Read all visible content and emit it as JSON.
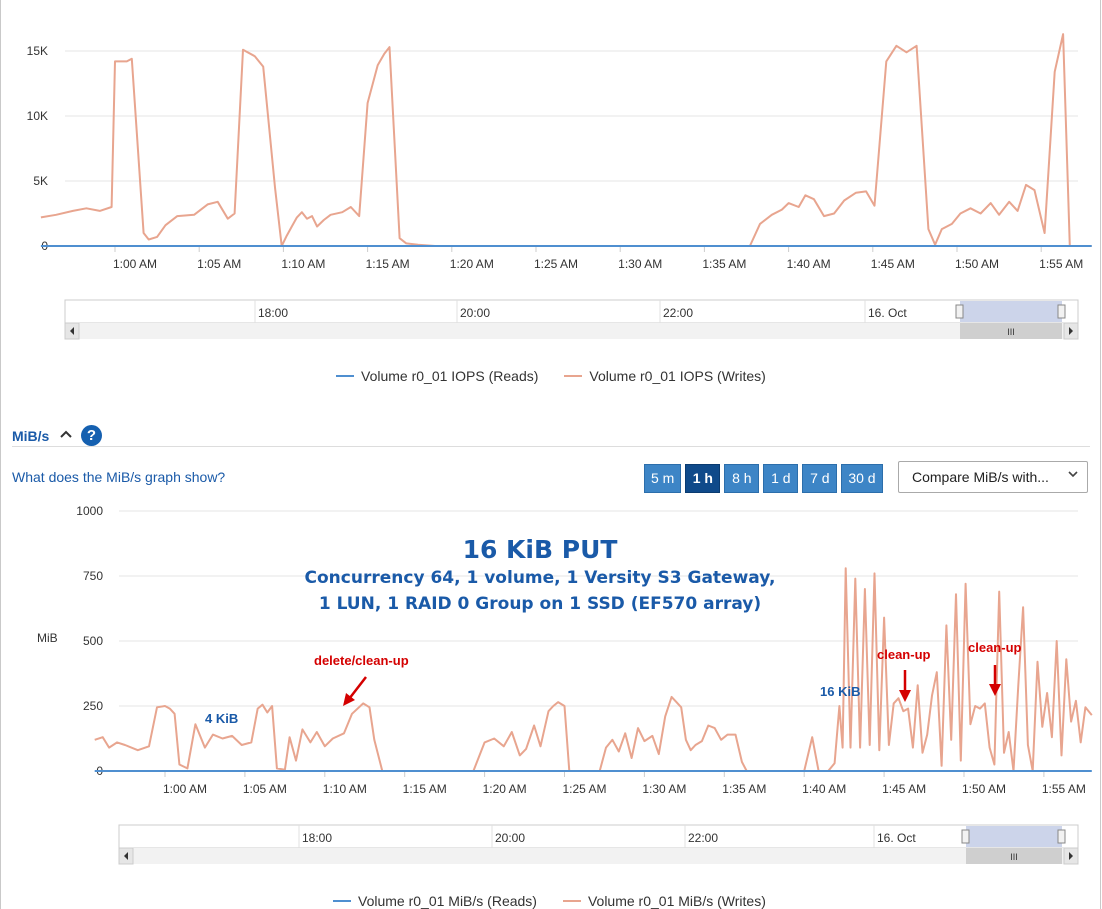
{
  "chart_data": [
    {
      "type": "line",
      "title": "",
      "ylabel": "",
      "y_ticks": [
        "0",
        "5K",
        "10K",
        "15K"
      ],
      "ylim": [
        0,
        17500
      ],
      "x_ticks": [
        "1:00 AM",
        "1:05 AM",
        "1:10 AM",
        "1:15 AM",
        "1:20 AM",
        "1:25 AM",
        "1:30 AM",
        "1:35 AM",
        "1:40 AM",
        "1:45 AM",
        "1:50 AM",
        "1:55 AM"
      ],
      "grid": true,
      "legend_position": "bottom",
      "series": [
        {
          "name": "Volume r0_01 IOPS (Reads)",
          "color": "#4f8fd0",
          "points": [
            [
              55.6,
              0
            ],
            [
              118,
              0
            ]
          ]
        },
        {
          "name": "Volume r0_01 IOPS (Writes)",
          "color": "#e8a58f",
          "points": [
            [
              55.6,
              2200
            ],
            [
              56.5,
              2400
            ],
            [
              57.5,
              2700
            ],
            [
              58.3,
              2900
            ],
            [
              59.1,
              2700
            ],
            [
              59.8,
              3000
            ],
            [
              60.0,
              14200
            ],
            [
              60.7,
              14200
            ],
            [
              61.0,
              14400
            ],
            [
              61.7,
              1000
            ],
            [
              62.0,
              500
            ],
            [
              62.5,
              700
            ],
            [
              63.0,
              1600
            ],
            [
              63.7,
              2300
            ],
            [
              64.7,
              2400
            ],
            [
              65.5,
              3200
            ],
            [
              66.1,
              3400
            ],
            [
              66.7,
              2100
            ],
            [
              67.1,
              2500
            ],
            [
              67.6,
              15100
            ],
            [
              68.3,
              14600
            ],
            [
              68.8,
              13800
            ],
            [
              69.5,
              4500
            ],
            [
              69.9,
              0
            ],
            [
              70.2,
              800
            ],
            [
              70.5,
              1500
            ],
            [
              70.8,
              2200
            ],
            [
              71.1,
              2600
            ],
            [
              71.4,
              2100
            ],
            [
              71.7,
              2300
            ],
            [
              72.0,
              1500
            ],
            [
              72.4,
              2000
            ],
            [
              72.8,
              2400
            ],
            [
              73.5,
              2600
            ],
            [
              74.0,
              3000
            ],
            [
              74.5,
              2300
            ],
            [
              75.0,
              11000
            ],
            [
              75.6,
              13900
            ],
            [
              76.0,
              14800
            ],
            [
              76.3,
              15300
            ],
            [
              76.9,
              600
            ],
            [
              77.3,
              200
            ],
            [
              78.0,
              100
            ],
            [
              79.0,
              0
            ],
            [
              85.0,
              0
            ],
            [
              95.0,
              0
            ],
            [
              97.7,
              0
            ],
            [
              98.3,
              1700
            ],
            [
              99.0,
              2400
            ],
            [
              99.6,
              2800
            ],
            [
              100.0,
              3300
            ],
            [
              100.6,
              3000
            ],
            [
              101.0,
              3900
            ],
            [
              101.5,
              3600
            ],
            [
              102.1,
              2300
            ],
            [
              102.7,
              2500
            ],
            [
              103.3,
              3500
            ],
            [
              104.0,
              4100
            ],
            [
              104.6,
              4200
            ],
            [
              105.1,
              3100
            ],
            [
              105.8,
              14200
            ],
            [
              106.4,
              15400
            ],
            [
              107.0,
              14900
            ],
            [
              107.6,
              15400
            ],
            [
              108.3,
              1300
            ],
            [
              108.7,
              100
            ],
            [
              109.1,
              1300
            ],
            [
              109.7,
              1700
            ],
            [
              110.2,
              2500
            ],
            [
              110.8,
              2900
            ],
            [
              111.4,
              2500
            ],
            [
              112.0,
              3300
            ],
            [
              112.5,
              2400
            ],
            [
              113.1,
              3400
            ],
            [
              113.6,
              2700
            ],
            [
              114.1,
              4700
            ],
            [
              114.6,
              4300
            ],
            [
              115.2,
              1000
            ],
            [
              115.8,
              13400
            ],
            [
              116.3,
              16300
            ],
            [
              116.7,
              0
            ],
            [
              118,
              0
            ]
          ]
        }
      ]
    },
    {
      "type": "line",
      "title": "",
      "ylabel": "MiB",
      "y_ticks": [
        "0",
        "250",
        "500",
        "750",
        "1000"
      ],
      "ylim": [
        0,
        1000
      ],
      "x_ticks": [
        "1:00 AM",
        "1:05 AM",
        "1:10 AM",
        "1:15 AM",
        "1:20 AM",
        "1:25 AM",
        "1:30 AM",
        "1:35 AM",
        "1:40 AM",
        "1:45 AM",
        "1:50 AM",
        "1:55 AM"
      ],
      "grid": true,
      "legend_position": "bottom",
      "annotations": [
        {
          "text": "16 KiB PUT",
          "color": "#1a5aa8"
        },
        {
          "text": "Concurrency 64, 1 volume, 1 Versity S3 Gateway,",
          "color": "#1a5aa8"
        },
        {
          "text": "1 LUN, 1 RAID 0 Group on 1 SSD (EF570 array)",
          "color": "#1a5aa8"
        },
        {
          "text": "4 KiB",
          "color": "#1a5aa8"
        },
        {
          "text": "delete/clean-up",
          "color": "#d40000"
        },
        {
          "text": "16 KiB",
          "color": "#1a5aa8"
        },
        {
          "text": "clean-up",
          "color": "#d40000"
        },
        {
          "text": "clean-up",
          "color": "#d40000"
        }
      ],
      "series": [
        {
          "name": "Volume r0_01 MiB/s (Reads)",
          "color": "#4f8fd0",
          "points": [
            [
              55.6,
              0
            ],
            [
              118,
              0
            ]
          ]
        },
        {
          "name": "Volume r0_01 MiB/s (Writes)",
          "color": "#e8a58f",
          "points": [
            [
              55.6,
              120
            ],
            [
              56.1,
              130
            ],
            [
              56.5,
              90
            ],
            [
              57.0,
              110
            ],
            [
              57.5,
              100
            ],
            [
              58.3,
              80
            ],
            [
              59.0,
              95
            ],
            [
              59.5,
              245
            ],
            [
              60.0,
              250
            ],
            [
              60.3,
              240
            ],
            [
              60.6,
              220
            ],
            [
              60.9,
              25
            ],
            [
              61.4,
              10
            ],
            [
              61.9,
              180
            ],
            [
              62.5,
              90
            ],
            [
              63.0,
              140
            ],
            [
              63.6,
              125
            ],
            [
              64.2,
              135
            ],
            [
              64.8,
              100
            ],
            [
              65.4,
              110
            ],
            [
              65.8,
              240
            ],
            [
              66.1,
              255
            ],
            [
              66.4,
              225
            ],
            [
              66.7,
              250
            ],
            [
              67.0,
              10
            ],
            [
              67.5,
              5
            ],
            [
              67.8,
              130
            ],
            [
              68.2,
              40
            ],
            [
              68.6,
              160
            ],
            [
              69.1,
              110
            ],
            [
              69.5,
              150
            ],
            [
              70.0,
              95
            ],
            [
              70.5,
              125
            ],
            [
              71.2,
              145
            ],
            [
              71.7,
              220
            ],
            [
              72.4,
              260
            ],
            [
              72.8,
              245
            ],
            [
              73.1,
              120
            ],
            [
              73.6,
              0
            ],
            [
              76.0,
              0
            ],
            [
              79.3,
              0
            ],
            [
              80.0,
              110
            ],
            [
              80.6,
              125
            ],
            [
              81.2,
              95
            ],
            [
              81.7,
              150
            ],
            [
              82.2,
              60
            ],
            [
              82.6,
              85
            ],
            [
              83.1,
              175
            ],
            [
              83.5,
              95
            ],
            [
              84.0,
              230
            ],
            [
              84.3,
              250
            ],
            [
              84.6,
              265
            ],
            [
              85.0,
              250
            ],
            [
              85.3,
              0
            ],
            [
              87.2,
              0
            ],
            [
              87.6,
              90
            ],
            [
              88.0,
              120
            ],
            [
              88.4,
              75
            ],
            [
              88.8,
              145
            ],
            [
              89.2,
              50
            ],
            [
              89.6,
              165
            ],
            [
              90.0,
              115
            ],
            [
              90.5,
              135
            ],
            [
              90.9,
              65
            ],
            [
              91.3,
              210
            ],
            [
              91.7,
              285
            ],
            [
              92.0,
              265
            ],
            [
              92.3,
              245
            ],
            [
              92.6,
              120
            ],
            [
              92.9,
              80
            ],
            [
              93.2,
              100
            ],
            [
              93.6,
              115
            ],
            [
              94.0,
              175
            ],
            [
              94.4,
              165
            ],
            [
              94.8,
              120
            ],
            [
              95.2,
              140
            ],
            [
              95.7,
              140
            ],
            [
              96.1,
              35
            ],
            [
              96.4,
              0
            ],
            [
              99.5,
              0
            ],
            [
              100.0,
              0
            ],
            [
              100.5,
              130
            ],
            [
              100.9,
              0
            ],
            [
              101.5,
              0
            ],
            [
              101.9,
              30
            ],
            [
              102.2,
              250
            ],
            [
              102.4,
              90
            ],
            [
              102.6,
              780
            ],
            [
              102.9,
              90
            ],
            [
              103.2,
              740
            ],
            [
              103.5,
              90
            ],
            [
              103.8,
              700
            ],
            [
              104.1,
              100
            ],
            [
              104.4,
              760
            ],
            [
              104.7,
              80
            ],
            [
              105.0,
              590
            ],
            [
              105.3,
              100
            ],
            [
              105.6,
              260
            ],
            [
              105.9,
              280
            ],
            [
              106.2,
              230
            ],
            [
              106.5,
              240
            ],
            [
              106.8,
              90
            ],
            [
              107.1,
              330
            ],
            [
              107.4,
              70
            ],
            [
              107.7,
              140
            ],
            [
              108.0,
              290
            ],
            [
              108.3,
              380
            ],
            [
              108.6,
              20
            ],
            [
              108.9,
              560
            ],
            [
              109.2,
              120
            ],
            [
              109.5,
              680
            ],
            [
              109.8,
              40
            ],
            [
              110.1,
              720
            ],
            [
              110.4,
              180
            ],
            [
              110.7,
              250
            ],
            [
              111.0,
              240
            ],
            [
              111.3,
              260
            ],
            [
              111.6,
              90
            ],
            [
              111.9,
              25
            ],
            [
              112.2,
              690
            ],
            [
              112.5,
              70
            ],
            [
              112.8,
              150
            ],
            [
              113.1,
              0
            ],
            [
              113.4,
              330
            ],
            [
              113.7,
              630
            ],
            [
              114.0,
              100
            ],
            [
              114.3,
              0
            ],
            [
              114.6,
              420
            ],
            [
              114.9,
              170
            ],
            [
              115.2,
              300
            ],
            [
              115.5,
              130
            ],
            [
              115.8,
              500
            ],
            [
              116.1,
              60
            ],
            [
              116.4,
              430
            ],
            [
              116.7,
              190
            ],
            [
              117.0,
              270
            ],
            [
              117.3,
              110
            ],
            [
              117.6,
              245
            ],
            [
              118.0,
              215
            ]
          ]
        }
      ]
    }
  ],
  "charts": [
    {
      "navigator": {
        "labels": [
          "18:00",
          "20:00",
          "22:00",
          "16. Oct"
        ],
        "scroll_left_icon": "arrow-left-icon",
        "scroll_right_icon": "arrow-right-icon",
        "grip_icon": "grip-icon"
      },
      "legend": [
        {
          "label": "Volume r0_01 IOPS (Reads)",
          "color": "#4f8fd0"
        },
        {
          "label": "Volume r0_01 IOPS (Writes)",
          "color": "#e8a58f"
        }
      ]
    },
    {
      "navigator": {
        "labels": [
          "18:00",
          "20:00",
          "22:00",
          "16. Oct"
        ],
        "scroll_left_icon": "arrow-left-icon",
        "scroll_right_icon": "arrow-right-icon",
        "grip_icon": "grip-icon"
      },
      "legend": [
        {
          "label": "Volume r0_01 MiB/s (Reads)",
          "color": "#4f8fd0"
        },
        {
          "label": "Volume r0_01 MiB/s (Writes)",
          "color": "#e8a58f"
        }
      ]
    }
  ],
  "mibs_section": {
    "title": "MiB/s",
    "collapse_icon": "chevron-up-icon",
    "help_icon": "help-icon",
    "help_link": "What does the MiB/s graph show?",
    "range_buttons": [
      {
        "label": "5 m",
        "active": false
      },
      {
        "label": "1 h",
        "active": true
      },
      {
        "label": "8 h",
        "active": false
      },
      {
        "label": "1 d",
        "active": false
      },
      {
        "label": "7 d",
        "active": false
      },
      {
        "label": "30 d",
        "active": false
      }
    ],
    "compare_select": "Compare MiB/s with...",
    "compare_arrow_icon": "chevron-down-icon"
  }
}
